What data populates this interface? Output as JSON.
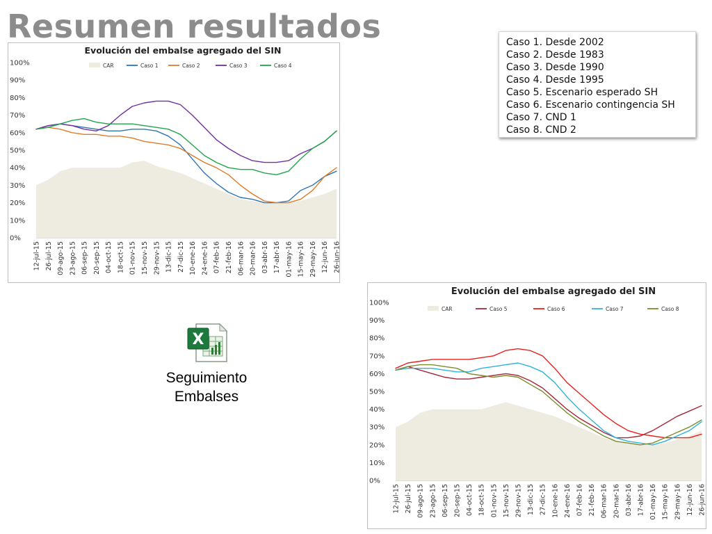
{
  "slide": {
    "title": "Resumen resultados"
  },
  "cases_legend": [
    "Caso 1. Desde 2002",
    "Caso 2. Desde 1983",
    "Caso 3. Desde 1990",
    "Caso 4. Desde 1995",
    "Caso 5. Escenario esperado SH",
    "Caso 6. Escenario contingencia SH",
    "Caso 7. CND 1",
    "Caso 8. CND 2"
  ],
  "attachment": {
    "label_line1": "Seguimiento",
    "label_line2": "Embalses",
    "icon": "excel-file-icon"
  },
  "chart_data": [
    {
      "type": "line",
      "title": "Evolución del embalse agregado del SIN",
      "xlabel": "",
      "ylabel": "",
      "ylim": [
        0,
        100
      ],
      "y_ticks": [
        "0%",
        "10%",
        "20%",
        "30%",
        "40%",
        "50%",
        "60%",
        "70%",
        "80%",
        "90%",
        "100%"
      ],
      "categories": [
        "12-jul-15",
        "26-jul-15",
        "09-ago-15",
        "23-ago-15",
        "06-sep-15",
        "20-sep-15",
        "04-oct-15",
        "18-oct-15",
        "01-nov-15",
        "15-nov-15",
        "29-nov-15",
        "13-dic-15",
        "27-dic-15",
        "10-ene-16",
        "24-ene-16",
        "07-feb-16",
        "21-feb-16",
        "06-mar-16",
        "20-mar-16",
        "03-abr-16",
        "17-abr-16",
        "01-may-16",
        "15-may-16",
        "29-may-16",
        "12-jun-16",
        "26-jun-16"
      ],
      "legend_position": "top",
      "grid": false,
      "area": {
        "name": "CAR",
        "color": "#eeebe0",
        "values": [
          30,
          33,
          38,
          40,
          40,
          40,
          40,
          40,
          43,
          44,
          41,
          39,
          37,
          34,
          31,
          28,
          25,
          22,
          21,
          20,
          20,
          20,
          21,
          23,
          25,
          28
        ]
      },
      "series": [
        {
          "name": "Caso 1",
          "color": "#2e75b6",
          "values": [
            62,
            64,
            65,
            64,
            63,
            62,
            61,
            61,
            62,
            62,
            61,
            58,
            53,
            45,
            37,
            31,
            26,
            23,
            22,
            20,
            20,
            21,
            27,
            30,
            35,
            38
          ]
        },
        {
          "name": "Caso 2",
          "color": "#e07b28",
          "values": [
            62,
            63,
            62,
            60,
            59,
            59,
            58,
            58,
            57,
            55,
            54,
            53,
            51,
            47,
            43,
            40,
            36,
            30,
            25,
            21,
            20,
            20,
            22,
            27,
            35,
            40
          ]
        },
        {
          "name": "Caso 3",
          "color": "#7030a0",
          "values": [
            62,
            64,
            65,
            64,
            62,
            61,
            64,
            70,
            75,
            77,
            78,
            78,
            76,
            70,
            63,
            56,
            51,
            47,
            44,
            43,
            43,
            44,
            48,
            51,
            55,
            61
          ]
        },
        {
          "name": "Caso 4",
          "color": "#1fa64a",
          "values": [
            62,
            63,
            65,
            67,
            68,
            66,
            65,
            65,
            65,
            64,
            63,
            62,
            59,
            53,
            47,
            43,
            40,
            39,
            39,
            37,
            36,
            38,
            45,
            51,
            55,
            61
          ]
        }
      ]
    },
    {
      "type": "line",
      "title": "Evolución del embalse agregado del SIN",
      "xlabel": "",
      "ylabel": "",
      "ylim": [
        0,
        100
      ],
      "y_ticks": [
        "0%",
        "10%",
        "20%",
        "30%",
        "40%",
        "50%",
        "60%",
        "70%",
        "80%",
        "90%",
        "100%"
      ],
      "categories": [
        "12-jul-15",
        "26-jul-15",
        "09-ago-15",
        "23-ago-15",
        "06-sep-15",
        "20-sep-15",
        "04-oct-15",
        "18-oct-15",
        "01-nov-15",
        "15-nov-15",
        "29-nov-15",
        "13-dic-15",
        "27-dic-15",
        "10-ene-16",
        "24-ene-16",
        "07-feb-16",
        "21-feb-16",
        "06-mar-16",
        "20-mar-16",
        "03-abr-16",
        "17-abr-16",
        "01-may-16",
        "15-may-16",
        "29-may-16",
        "12-jun-16",
        "26-jun-16"
      ],
      "legend_position": "top",
      "grid": false,
      "area": {
        "name": "CAR",
        "color": "#eeebe0",
        "values": [
          30,
          33,
          38,
          40,
          40,
          40,
          40,
          40,
          42,
          44,
          42,
          40,
          38,
          36,
          33,
          30,
          27,
          24,
          22,
          21,
          20,
          20,
          21,
          23,
          25,
          28
        ]
      },
      "series": [
        {
          "name": "Caso 5",
          "color": "#a6263a",
          "values": [
            62,
            64,
            62,
            60,
            58,
            57,
            57,
            58,
            59,
            60,
            59,
            56,
            52,
            46,
            40,
            35,
            31,
            27,
            24,
            24,
            25,
            28,
            32,
            36,
            39,
            42
          ]
        },
        {
          "name": "Caso 6",
          "color": "#e8201f",
          "values": [
            63,
            66,
            67,
            68,
            68,
            68,
            68,
            69,
            70,
            73,
            74,
            73,
            70,
            63,
            55,
            49,
            43,
            37,
            32,
            28,
            26,
            25,
            24,
            24,
            24,
            26
          ]
        },
        {
          "name": "Caso 7",
          "color": "#2bb5d9",
          "values": [
            62,
            63,
            63,
            63,
            62,
            61,
            61,
            63,
            64,
            65,
            66,
            64,
            61,
            55,
            47,
            40,
            34,
            28,
            24,
            22,
            21,
            20,
            22,
            25,
            28,
            33
          ]
        },
        {
          "name": "Caso 8",
          "color": "#7a8c2e",
          "values": [
            62,
            64,
            65,
            65,
            64,
            63,
            60,
            59,
            58,
            59,
            58,
            54,
            50,
            44,
            38,
            33,
            29,
            25,
            22,
            21,
            20,
            21,
            24,
            27,
            30,
            34
          ]
        }
      ]
    }
  ]
}
